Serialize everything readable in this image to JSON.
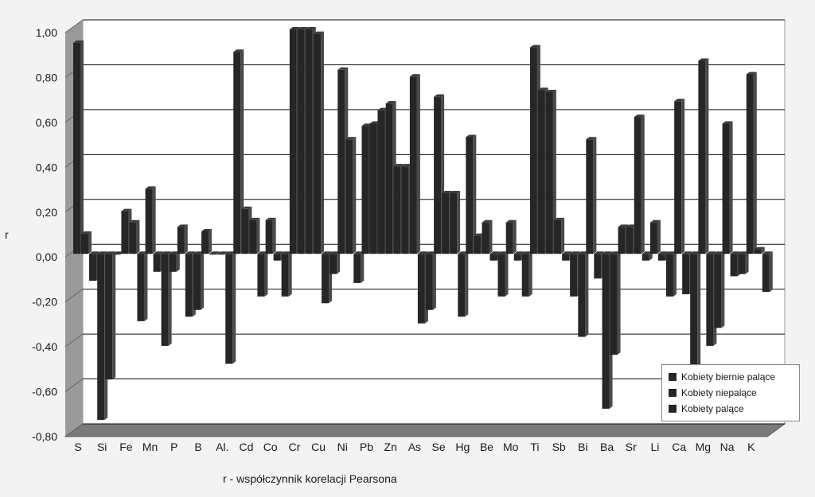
{
  "chart_data": {
    "type": "bar",
    "title": "",
    "xlabel": "r - współczynnik korelacji Pearsona",
    "ylabel": "r",
    "ylim": [
      -0.8,
      1.0
    ],
    "y_ticks": [
      "1,00",
      "0,80",
      "0,60",
      "0,40",
      "0,20",
      "0,00",
      "-0,20",
      "-0,40",
      "-0,60",
      "-0,80"
    ],
    "y_tick_values": [
      1.0,
      0.8,
      0.6,
      0.4,
      0.2,
      0.0,
      -0.2,
      -0.4,
      -0.6,
      -0.8
    ],
    "grid": true,
    "legend_position": "bottom-right",
    "categories": [
      "S",
      "Si",
      "Fe",
      "Mn",
      "P",
      "B",
      "Al.",
      "Cd",
      "Co",
      "Cr",
      "Cu",
      "Ni",
      "Pb",
      "Zn",
      "As",
      "Se",
      "Hg",
      "Be",
      "Mo",
      "Ti",
      "Sb",
      "Bi",
      "Ba",
      "Sr",
      "Li",
      "Ca",
      "Mg",
      "Na",
      "K"
    ],
    "series": [
      {
        "name": "Kobiety biernie palące",
        "values": [
          0.94,
          -0.74,
          0.19,
          0.29,
          -0.08,
          -0.25,
          0.0,
          0.2,
          0.15,
          1.0,
          0.98,
          0.82,
          0.57,
          0.67,
          0.79,
          0.7,
          -0.28,
          0.14,
          0.14,
          0.92,
          0.15,
          -0.37,
          -0.69,
          0.12,
          0.14,
          0.68,
          0.86,
          0.58,
          0.8
        ]
      },
      {
        "name": "Kobiety niepalące",
        "values": [
          0.09,
          -0.56,
          0.14,
          -0.08,
          0.12,
          0.1,
          -0.49,
          0.15,
          -0.03,
          1.0,
          -0.22,
          0.51,
          0.58,
          0.39,
          -0.31,
          0.27,
          0.52,
          -0.03,
          -0.03,
          0.73,
          -0.03,
          0.51,
          -0.45,
          0.61,
          -0.03,
          -0.18,
          -0.41,
          -0.1,
          0.02
        ]
      },
      {
        "name": "Kobiety palące",
        "values": [
          -0.12,
          0.0,
          -0.3,
          -0.41,
          -0.28,
          0.0,
          0.9,
          -0.19,
          -0.19,
          1.0,
          -0.09,
          -0.13,
          0.64,
          0.39,
          -0.25,
          0.27,
          0.08,
          -0.19,
          -0.19,
          0.72,
          -0.19,
          -0.11,
          0.12,
          -0.03,
          -0.19,
          -0.54,
          -0.33,
          -0.09,
          -0.17
        ]
      }
    ],
    "colors": {
      "bar": "#262626",
      "bar_side": "#4a4a4a",
      "wall": "#ffffff",
      "floor": "#7a7a7a",
      "left_wall": "#9a9a9a",
      "grid": "#111111"
    }
  }
}
